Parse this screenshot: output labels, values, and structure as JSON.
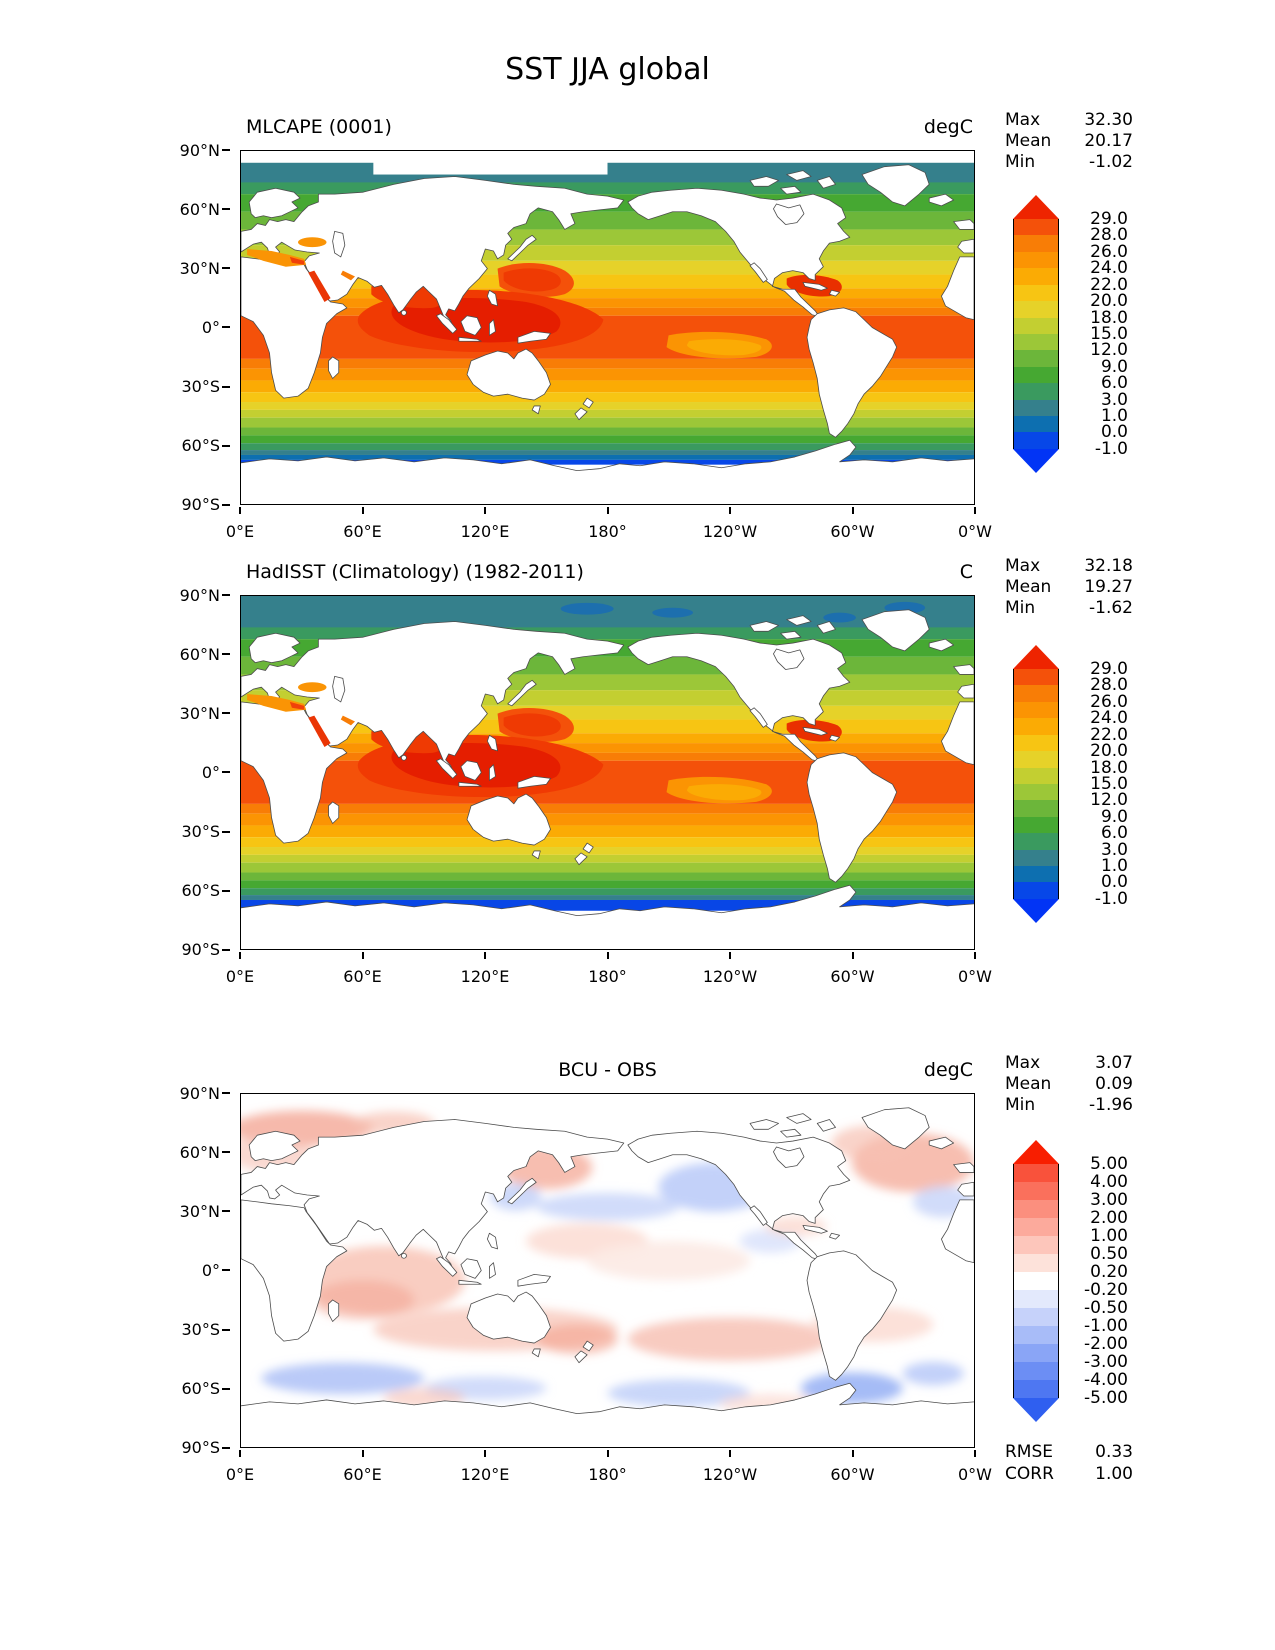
{
  "page_title": "SST JJA global",
  "axis": {
    "x_ticks": [
      "0°E",
      "60°E",
      "120°E",
      "180°",
      "120°W",
      "60°W",
      "0°W"
    ],
    "y_ticks": [
      "90°N",
      "60°N",
      "30°N",
      "0°",
      "30°S",
      "60°S",
      "90°S"
    ]
  },
  "panels": [
    {
      "title": "MLCAPE (0001)",
      "unit": "degC",
      "stats": [
        {
          "label": "Max",
          "value": "32.30"
        },
        {
          "label": "Mean",
          "value": "20.17"
        },
        {
          "label": "Min",
          "value": "-1.02"
        }
      ],
      "colorbar": {
        "tick_labels": [
          "29.0",
          "28.0",
          "26.0",
          "24.0",
          "22.0",
          "20.0",
          "18.0",
          "15.0",
          "12.0",
          "9.0",
          "6.0",
          "3.0",
          "1.0",
          "0.0",
          "-1.0"
        ],
        "segment_colors": [
          "#f4510a",
          "#f87d06",
          "#fb9403",
          "#fbab04",
          "#f7c513",
          "#e6d229",
          "#c3cf31",
          "#9cc738",
          "#6cb63a",
          "#46a832",
          "#3a9a5f",
          "#35808c",
          "#0d6fb0",
          "#0747e8"
        ],
        "arrow_top_color": "#ee2400",
        "arrow_bottom_color": "#0234f5"
      }
    },
    {
      "title": "HadISST (Climatology) (1982-2011)",
      "unit": "C",
      "stats": [
        {
          "label": "Max",
          "value": "32.18"
        },
        {
          "label": "Mean",
          "value": "19.27"
        },
        {
          "label": "Min",
          "value": "-1.62"
        }
      ],
      "colorbar": {
        "tick_labels": [
          "29.0",
          "28.0",
          "26.0",
          "24.0",
          "22.0",
          "20.0",
          "18.0",
          "15.0",
          "12.0",
          "9.0",
          "6.0",
          "3.0",
          "1.0",
          "0.0",
          "-1.0"
        ],
        "segment_colors": [
          "#f4510a",
          "#f87d06",
          "#fb9403",
          "#fbab04",
          "#f7c513",
          "#e6d229",
          "#c3cf31",
          "#9cc738",
          "#6cb63a",
          "#46a832",
          "#3a9a5f",
          "#35808c",
          "#0d6fb0",
          "#0747e8"
        ],
        "arrow_top_color": "#ee2400",
        "arrow_bottom_color": "#0234f5"
      }
    },
    {
      "title": "BCU - OBS",
      "unit": "degC",
      "stats": [
        {
          "label": "Max",
          "value": "3.07"
        },
        {
          "label": "Mean",
          "value": "0.09"
        },
        {
          "label": "Min",
          "value": "-1.96"
        }
      ],
      "colorbar": {
        "tick_labels": [
          "5.00",
          "4.00",
          "3.00",
          "2.00",
          "1.00",
          "0.50",
          "0.20",
          "-0.20",
          "-0.50",
          "-1.00",
          "-2.00",
          "-3.00",
          "-4.00",
          "-5.00"
        ],
        "segment_colors": [
          "#f9523b",
          "#fa705c",
          "#fb8f7e",
          "#fcaa9c",
          "#fdc6bb",
          "#fde2da",
          "#ffffff",
          "#e3e9fc",
          "#c6d2fa",
          "#a8bcf8",
          "#8aa5f6",
          "#6c8ef4",
          "#4e77f2"
        ],
        "arrow_top_color": "#f81e00",
        "arrow_bottom_color": "#2f5ff0"
      },
      "extra_stats": [
        {
          "label": "RMSE",
          "value": "0.33"
        },
        {
          "label": "CORR",
          "value": "1.00"
        }
      ]
    }
  ],
  "chart_data": [
    {
      "type": "heatmap",
      "title": "MLCAPE (0001)",
      "variable": "SST",
      "season": "JJA",
      "region": "global",
      "units": "degC",
      "x_ticks": [
        "0°E",
        "60°E",
        "120°E",
        "180°",
        "120°W",
        "60°W",
        "0°W"
      ],
      "y_ticks": [
        "90°N",
        "60°N",
        "30°N",
        "0°",
        "30°S",
        "60°S",
        "90°S"
      ],
      "levels": [
        -1.0,
        0.0,
        1.0,
        3.0,
        6.0,
        9.0,
        12.0,
        15.0,
        18.0,
        20.0,
        22.0,
        24.0,
        26.0,
        28.0,
        29.0
      ],
      "stats": {
        "max": 32.3,
        "mean": 20.17,
        "min": -1.02
      },
      "colorbar_extend": "both",
      "pattern": "Warm (28-30+ degC) red pool over tropical Indo-Pacific and Caribbean; zonal bands cooling poleward to blue (<0 degC) near 60S; white (no data) over land and polar ice"
    },
    {
      "type": "heatmap",
      "title": "HadISST (Climatology) (1982-2011)",
      "variable": "SST",
      "season": "JJA",
      "region": "global",
      "units": "C",
      "x_ticks": [
        "0°E",
        "60°E",
        "120°E",
        "180°",
        "120°W",
        "60°W",
        "0°W"
      ],
      "y_ticks": [
        "90°N",
        "60°N",
        "30°N",
        "0°",
        "30°S",
        "60°S",
        "90°S"
      ],
      "levels": [
        -1.0,
        0.0,
        1.0,
        3.0,
        6.0,
        9.0,
        12.0,
        15.0,
        18.0,
        20.0,
        22.0,
        24.0,
        26.0,
        28.0,
        29.0
      ],
      "stats": {
        "max": 32.18,
        "mean": 19.27,
        "min": -1.62
      },
      "colorbar_extend": "both",
      "pattern": "Observed climatological SST, same banded structure as model panel; teal/blue Arctic values filled to top edge and pronounced bright blue circum-Antarctic band near 60S"
    },
    {
      "type": "heatmap",
      "title": "BCU - OBS",
      "variable": "SST difference (model minus observations)",
      "season": "JJA",
      "region": "global",
      "units": "degC",
      "x_ticks": [
        "0°E",
        "60°E",
        "120°E",
        "180°",
        "120°W",
        "60°W",
        "0°W"
      ],
      "y_ticks": [
        "90°N",
        "60°N",
        "30°N",
        "0°",
        "30°S",
        "60°S",
        "90°S"
      ],
      "levels": [
        -5.0,
        -4.0,
        -3.0,
        -2.0,
        -1.0,
        -0.5,
        -0.2,
        0.2,
        0.5,
        1.0,
        2.0,
        3.0,
        4.0,
        5.0
      ],
      "stats": {
        "max": 3.07,
        "mean": 0.09,
        "min": -1.96,
        "rmse": 0.33,
        "corr": 1.0
      },
      "colorbar_extend": "both",
      "pattern": "Mostly near-zero (white); weak warm bias (pink, ~0.5-1) over Indian Ocean, southern subtropics, Arctic and North Atlantic; weak cool bias (light blue) over NE Pacific, mid-latitude North Pacific and parts of the Southern Ocean"
    }
  ]
}
